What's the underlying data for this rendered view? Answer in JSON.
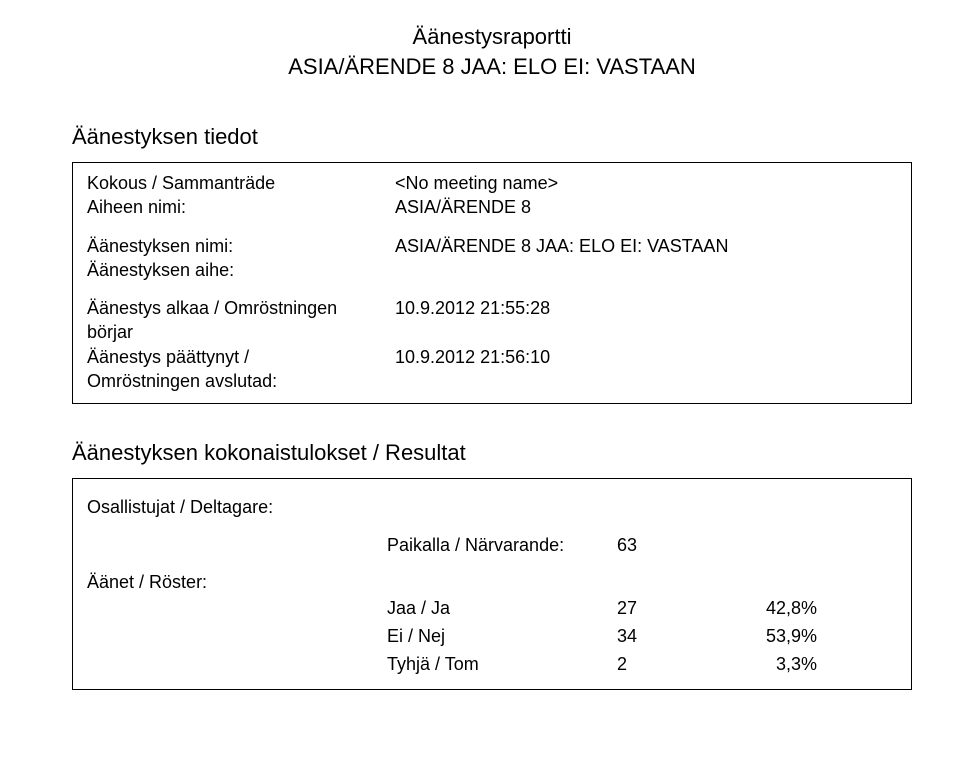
{
  "header": {
    "reportTitle": "Äänestysraportti",
    "subtitle": "ASIA/ÄRENDE 8 JAA: ELO   EI: VASTAAN"
  },
  "section1": {
    "heading": "Äänestyksen tiedot",
    "meeting": {
      "label": "Kokous / Sammanträde",
      "value": "<No meeting name>"
    },
    "topicName": {
      "label": "Aiheen nimi:",
      "value": "ASIA/ÄRENDE 8"
    },
    "voteName": {
      "label": "Äänestyksen nimi:",
      "value": "ASIA/ÄRENDE 8 JAA: ELO   EI: VASTAAN"
    },
    "voteTopic": {
      "label": "Äänestyksen aihe:",
      "value": ""
    },
    "startsLabel1": "Äänestys alkaa / Omröstningen",
    "startsLabel2": "börjar",
    "startsValue": "10.9.2012 21:55:28",
    "endsLabel1": "Äänestys päättynyt /",
    "endsLabel2": "Omröstningen avslutad:",
    "endsValue": "10.9.2012 21:56:10"
  },
  "section2": {
    "heading": "Äänestyksen kokonaistulokset / Resultat",
    "participantsLabel": "Osallistujat / Deltagare:",
    "present": {
      "label": "Paikalla / Närvarande:",
      "value": "63"
    },
    "votesHeading": "Äänet / Röster:",
    "rows": [
      {
        "label": "Jaa / Ja",
        "value": "27",
        "pct": "42,8%"
      },
      {
        "label": "Ei / Nej",
        "value": "34",
        "pct": "53,9%"
      },
      {
        "label": "Tyhjä / Tom",
        "value": "2",
        "pct": "3,3%"
      }
    ]
  }
}
